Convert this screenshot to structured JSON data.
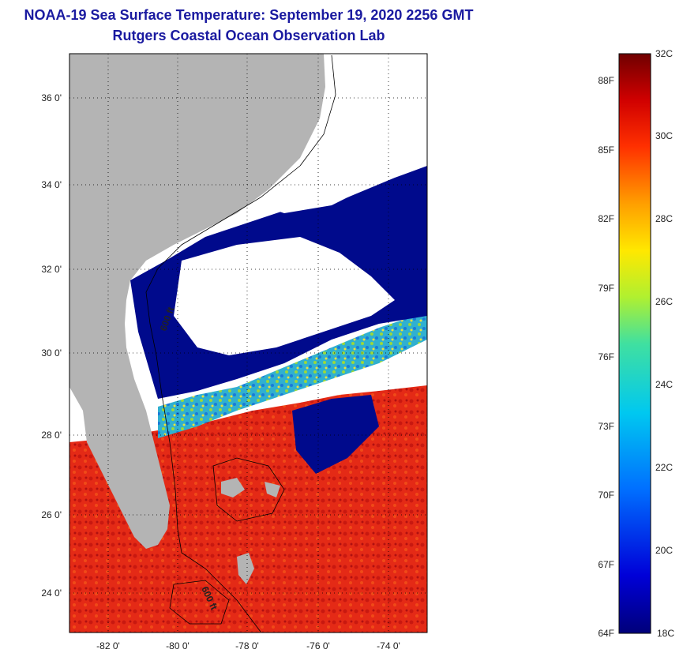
{
  "title": {
    "line1": "NOAA-19 Sea Surface Temperature:  September 19, 2020 2256 GMT",
    "line2": "Rutgers Coastal Ocean Observation Lab"
  },
  "map": {
    "lat_labels": [
      "36 0'",
      "34 0'",
      "32 0'",
      "30 0'",
      "28 0'",
      "26 0'",
      "24 0'"
    ],
    "lon_labels": [
      "-82 0'",
      "-80 0'",
      "-78 0'",
      "-76 0'",
      "-74 0'"
    ],
    "contour_labels": [
      "600 ft",
      "600 ft"
    ],
    "colors": {
      "land": "#b4b4b4",
      "cloud": "#ffffff",
      "cold_water": "#000a8c",
      "warm_water": "#e02818",
      "mid_water": "#2bb6c8"
    }
  },
  "colorbar": {
    "fahrenheit_labels": [
      "88F",
      "85F",
      "82F",
      "79F",
      "76F",
      "73F",
      "70F",
      "67F",
      "64F"
    ],
    "celsius_labels": [
      "32C",
      "30C",
      "28C",
      "26C",
      "24C",
      "22C",
      "20C",
      "18C"
    ],
    "range_c": [
      18,
      32
    ],
    "range_f": [
      64,
      89.6
    ]
  }
}
